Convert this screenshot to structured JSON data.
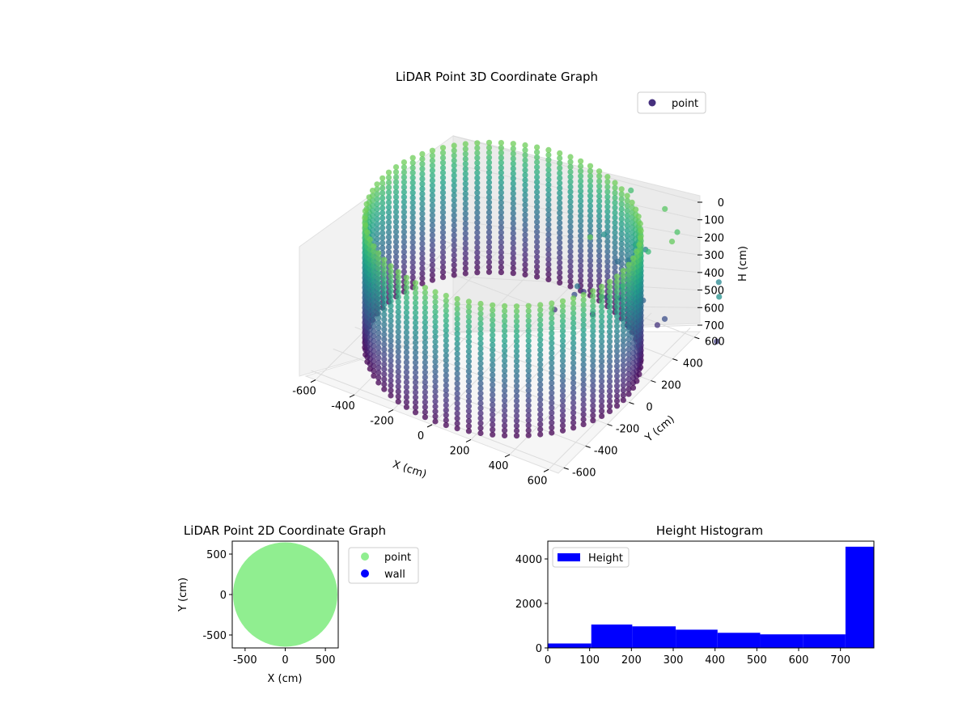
{
  "chart_data": [
    {
      "type": "scatter",
      "projection": "3d",
      "title": "LiDAR Point 3D Coordinate Graph",
      "xlabel": "X (cm)",
      "ylabel": "Y (cm)",
      "zlabel": "H (cm)",
      "xlim": [
        -650,
        650
      ],
      "ylim": [
        -650,
        650
      ],
      "zlim": [
        0,
        780
      ],
      "z_inverted": true,
      "x_ticks": [
        -600,
        -400,
        -200,
        0,
        200,
        400,
        600
      ],
      "y_ticks": [
        -600,
        -400,
        -200,
        0,
        200,
        400,
        600
      ],
      "z_ticks": [
        0,
        100,
        200,
        300,
        400,
        500,
        600,
        700
      ],
      "grid": true,
      "colormap": "viridis",
      "legend": {
        "placement": "top-right",
        "entries": [
          {
            "label": "point",
            "color": "#46307e"
          }
        ]
      },
      "series": [
        {
          "name": "point",
          "description_values": {
            "wall_radius": 620,
            "wall_height": [
              0,
              780
            ],
            "interior_points": [
              [
                120,
                260,
                150
              ],
              [
                200,
                300,
                250
              ],
              [
                260,
                360,
                120
              ],
              [
                300,
                420,
                200
              ],
              [
                340,
                300,
                300
              ],
              [
                180,
                420,
                180
              ],
              [
                260,
                220,
                380
              ],
              [
                400,
                360,
                280
              ],
              [
                440,
                460,
                220
              ],
              [
                480,
                300,
                180
              ],
              [
                380,
                480,
                420
              ],
              [
                520,
                360,
                320
              ],
              [
                560,
                420,
                150
              ],
              [
                300,
                520,
                350
              ],
              [
                620,
                380,
                240
              ],
              [
                240,
                500,
                500
              ],
              [
                420,
                560,
                450
              ],
              [
                500,
                200,
                500
              ],
              [
                460,
                400,
                600
              ],
              [
                580,
                300,
                680
              ],
              [
                640,
                460,
                720
              ],
              [
                360,
                160,
                760
              ],
              [
                520,
                560,
                740
              ],
              [
                300,
                640,
                700
              ],
              [
                680,
                340,
                760
              ]
            ],
            "outliers": [
              [
                860,
                430,
                180
              ],
              [
                820,
                520,
                460
              ],
              [
                900,
                380,
                500
              ]
            ]
          }
        }
      ]
    },
    {
      "type": "scatter",
      "title": "LiDAR Point 2D Coordinate Graph",
      "xlabel": "X (cm)",
      "ylabel": "Y (cm)",
      "xlim": [
        -660,
        660
      ],
      "ylim": [
        -660,
        660
      ],
      "x_ticks": [
        -500,
        0,
        500
      ],
      "y_ticks": [
        -500,
        0,
        500
      ],
      "legend": {
        "placement": "outside-right",
        "entries": [
          {
            "label": "point",
            "color": "#90ee90"
          },
          {
            "label": "wall",
            "color": "#0000ff"
          }
        ]
      },
      "series": [
        {
          "name": "point",
          "color": "#90ee90",
          "shape": "disc",
          "radius": 650
        },
        {
          "name": "wall",
          "color": "#0000ff",
          "values": []
        }
      ]
    },
    {
      "type": "bar",
      "subtype": "histogram",
      "title": "Height Histogram",
      "xlim": [
        0,
        780
      ],
      "ylim": [
        0,
        4800
      ],
      "x_ticks": [
        0,
        100,
        200,
        300,
        400,
        500,
        600,
        700
      ],
      "y_ticks": [
        0,
        2000,
        4000
      ],
      "legend": {
        "placement": "top-left",
        "entries": [
          {
            "label": "Height",
            "color": "#0000ff"
          }
        ]
      },
      "series": [
        {
          "name": "Height",
          "color": "#0000ff",
          "bins": [
            {
              "x0": 0,
              "x1": 104,
              "count": 200
            },
            {
              "x0": 104,
              "x1": 202,
              "count": 1050
            },
            {
              "x0": 202,
              "x1": 306,
              "count": 970
            },
            {
              "x0": 306,
              "x1": 406,
              "count": 820
            },
            {
              "x0": 406,
              "x1": 508,
              "count": 680
            },
            {
              "x0": 508,
              "x1": 610,
              "count": 610
            },
            {
              "x0": 610,
              "x1": 712,
              "count": 610
            },
            {
              "x0": 712,
              "x1": 780,
              "count": 4550
            }
          ]
        }
      ]
    }
  ]
}
